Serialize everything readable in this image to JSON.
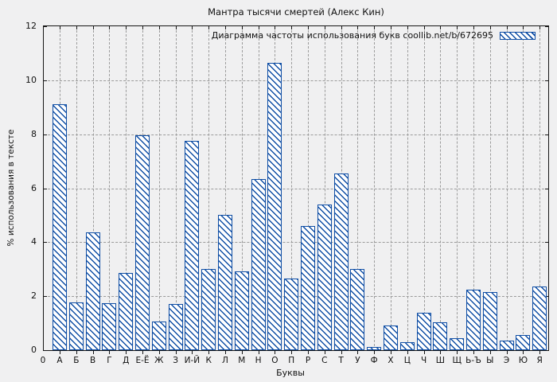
{
  "page": {
    "background_color": "#f0f0f1",
    "frame_color": "#161616",
    "grid_color": "#9b9b9b",
    "accent_color": "#0e4da4"
  },
  "chart_data": {
    "type": "bar",
    "title": "Мантра тысячи смертей (Алекс Кин)",
    "legend": "Диаграмма частоты использования букв coollib.net/b/672695",
    "legend_position": "top-right-inside",
    "xlabel": "Буквы",
    "ylabel": "% использования в тексте",
    "x_origin_label": "0",
    "ylim": [
      0,
      12
    ],
    "yticks": [
      0,
      2,
      4,
      6,
      8,
      10,
      12
    ],
    "grid": true,
    "bar_style": {
      "fill": "#ffffff",
      "hatch": "diagonal-backslash",
      "color": "#0e4da4"
    },
    "categories": [
      "А",
      "Б",
      "В",
      "Г",
      "Д",
      "Е-Ё",
      "Ж",
      "З",
      "И-Й",
      "К",
      "Л",
      "М",
      "Н",
      "О",
      "П",
      "Р",
      "С",
      "Т",
      "У",
      "Ф",
      "Х",
      "Ц",
      "Ч",
      "Ш",
      "Щ",
      "Ь-Ъ",
      "Ы",
      "Э",
      "Ю",
      "Я"
    ],
    "values": [
      9.1,
      1.78,
      4.35,
      1.75,
      2.87,
      7.95,
      1.07,
      1.7,
      7.75,
      3.02,
      5.02,
      2.91,
      6.34,
      10.63,
      2.64,
      4.6,
      5.41,
      6.56,
      3.02,
      0.12,
      0.9,
      0.3,
      1.4,
      1.03,
      0.44,
      2.24,
      2.16,
      0.35,
      0.55,
      2.37
    ]
  }
}
